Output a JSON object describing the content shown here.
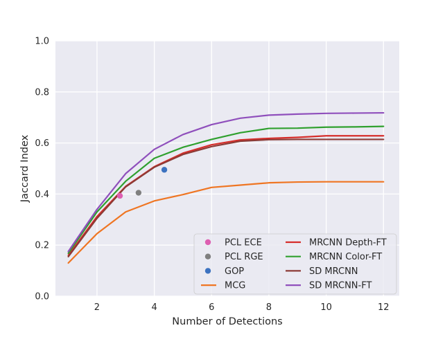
{
  "chart_data": {
    "type": "line",
    "title": "",
    "xlabel": "Number of Detections",
    "ylabel": "Jaccard Index",
    "xlim": [
      0.55,
      12.55
    ],
    "ylim": [
      0.0,
      1.0
    ],
    "grid": true,
    "background": "#eaeaf2",
    "legend_position": "lower-right",
    "x_ticks": [
      2,
      4,
      6,
      8,
      10,
      12
    ],
    "y_ticks": [
      0.0,
      0.2,
      0.4,
      0.6,
      0.8,
      1.0
    ],
    "points": [
      {
        "name": "PCL ECE",
        "x": 2.8,
        "y": 0.393,
        "color": "#dd5fb1"
      },
      {
        "name": "PCL RGE",
        "x": 3.45,
        "y": 0.405,
        "color": "#7f7f7f"
      },
      {
        "name": "GOP",
        "x": 4.35,
        "y": 0.495,
        "color": "#3c72c0"
      }
    ],
    "series": [
      {
        "name": "MCG",
        "color": "#ef7522",
        "x": [
          1,
          2,
          3,
          4,
          5,
          6,
          7,
          8,
          9,
          10,
          11,
          12
        ],
        "y": [
          0.13,
          0.245,
          0.33,
          0.373,
          0.398,
          0.426,
          0.435,
          0.444,
          0.447,
          0.448,
          0.448,
          0.448
        ]
      },
      {
        "name": "MRCNN Depth-FT",
        "color": "#d62d2a",
        "x": [
          1,
          2,
          3,
          4,
          5,
          6,
          7,
          8,
          9,
          10,
          11,
          12
        ],
        "y": [
          0.16,
          0.312,
          0.43,
          0.507,
          0.56,
          0.593,
          0.612,
          0.618,
          0.622,
          0.628,
          0.628,
          0.628
        ]
      },
      {
        "name": "MRCNN Color-FT",
        "color": "#2fa02e",
        "x": [
          1,
          2,
          3,
          4,
          5,
          6,
          7,
          8,
          9,
          10,
          11,
          12
        ],
        "y": [
          0.168,
          0.33,
          0.45,
          0.54,
          0.583,
          0.614,
          0.64,
          0.657,
          0.658,
          0.662,
          0.663,
          0.665
        ]
      },
      {
        "name": "SD MRCNN",
        "color": "#8c3b36",
        "x": [
          1,
          2,
          3,
          4,
          5,
          6,
          7,
          8,
          9,
          10,
          11,
          12
        ],
        "y": [
          0.155,
          0.305,
          0.428,
          0.505,
          0.555,
          0.586,
          0.607,
          0.613,
          0.614,
          0.614,
          0.614,
          0.614
        ]
      },
      {
        "name": "SD MRCNN-FT",
        "color": "#8f4fbc",
        "x": [
          1,
          2,
          3,
          4,
          5,
          6,
          7,
          8,
          9,
          10,
          11,
          12
        ],
        "y": [
          0.175,
          0.34,
          0.48,
          0.575,
          0.633,
          0.672,
          0.697,
          0.709,
          0.713,
          0.716,
          0.717,
          0.718
        ]
      }
    ],
    "legend": {
      "col1": [
        "PCL ECE",
        "PCL RGE",
        "GOP",
        "MCG"
      ],
      "col2": [
        "MRCNN Depth-FT",
        "MRCNN Color-FT",
        "SD MRCNN",
        "SD MRCNN-FT"
      ]
    }
  }
}
